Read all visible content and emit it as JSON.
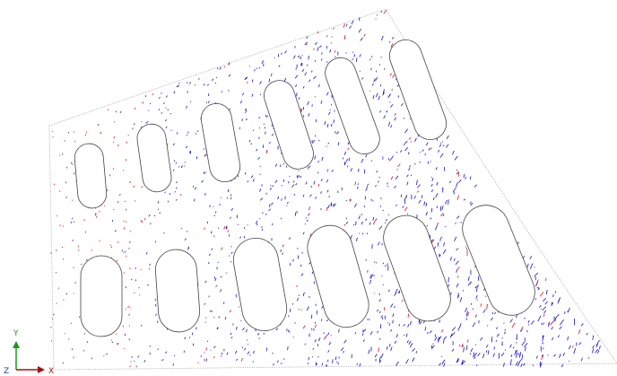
{
  "triad": {
    "y": "Y",
    "z": "Z",
    "x": "X"
  }
}
